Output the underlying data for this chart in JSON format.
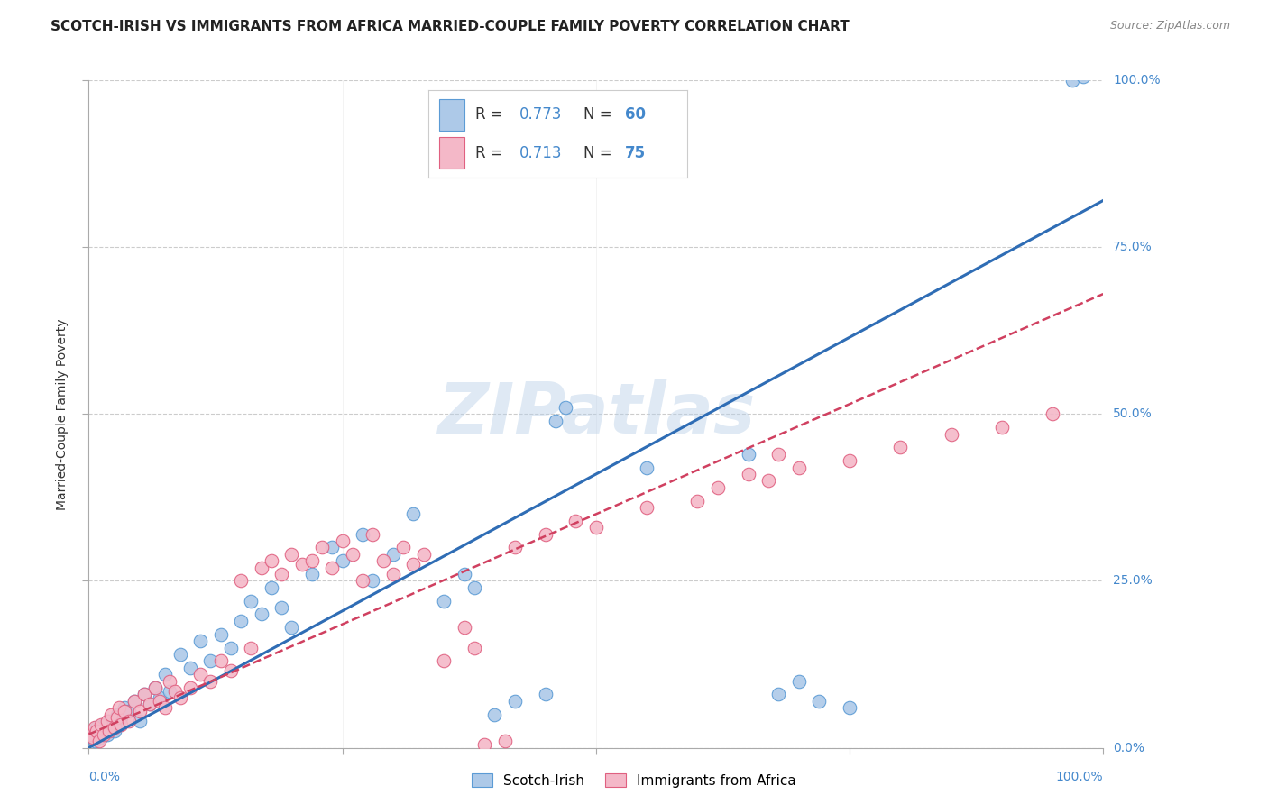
{
  "title": "SCOTCH-IRISH VS IMMIGRANTS FROM AFRICA MARRIED-COUPLE FAMILY POVERTY CORRELATION CHART",
  "source": "Source: ZipAtlas.com",
  "ylabel": "Married-Couple Family Poverty",
  "ytick_values": [
    0,
    25,
    50,
    75,
    100
  ],
  "ytick_labels": [
    "0.0%",
    "25.0%",
    "50.0%",
    "75.0%",
    "100.0%"
  ],
  "xtick_values": [
    0,
    25,
    50,
    75,
    100
  ],
  "xlim": [
    0,
    100
  ],
  "ylim": [
    0,
    100
  ],
  "watermark": "ZIPatlas",
  "series": [
    {
      "name": "Scotch-Irish",
      "color": "#adc9e8",
      "edge_color": "#5b9bd5",
      "line_color": "#2f6db5",
      "line_style": "solid",
      "R": 0.773,
      "N": 60,
      "points": [
        [
          0.2,
          1.5
        ],
        [
          0.4,
          2.0
        ],
        [
          0.6,
          1.0
        ],
        [
          0.8,
          3.0
        ],
        [
          1.0,
          2.5
        ],
        [
          1.2,
          1.5
        ],
        [
          1.5,
          3.5
        ],
        [
          1.8,
          2.0
        ],
        [
          2.0,
          4.0
        ],
        [
          2.2,
          3.0
        ],
        [
          2.5,
          2.5
        ],
        [
          2.8,
          5.0
        ],
        [
          3.0,
          3.5
        ],
        [
          3.2,
          4.5
        ],
        [
          3.5,
          6.0
        ],
        [
          4.0,
          5.5
        ],
        [
          4.5,
          7.0
        ],
        [
          5.0,
          4.0
        ],
        [
          5.5,
          8.0
        ],
        [
          6.0,
          6.5
        ],
        [
          6.5,
          9.0
        ],
        [
          7.0,
          7.5
        ],
        [
          7.5,
          11.0
        ],
        [
          8.0,
          8.5
        ],
        [
          9.0,
          14.0
        ],
        [
          10.0,
          12.0
        ],
        [
          11.0,
          16.0
        ],
        [
          12.0,
          13.0
        ],
        [
          13.0,
          17.0
        ],
        [
          14.0,
          15.0
        ],
        [
          15.0,
          19.0
        ],
        [
          16.0,
          22.0
        ],
        [
          17.0,
          20.0
        ],
        [
          18.0,
          24.0
        ],
        [
          19.0,
          21.0
        ],
        [
          20.0,
          18.0
        ],
        [
          22.0,
          26.0
        ],
        [
          24.0,
          30.0
        ],
        [
          25.0,
          28.0
        ],
        [
          27.0,
          32.0
        ],
        [
          28.0,
          25.0
        ],
        [
          30.0,
          29.0
        ],
        [
          32.0,
          35.0
        ],
        [
          35.0,
          22.0
        ],
        [
          37.0,
          26.0
        ],
        [
          38.0,
          24.0
        ],
        [
          40.0,
          5.0
        ],
        [
          42.0,
          7.0
        ],
        [
          45.0,
          8.0
        ],
        [
          46.0,
          49.0
        ],
        [
          47.0,
          51.0
        ],
        [
          55.0,
          42.0
        ],
        [
          65.0,
          44.0
        ],
        [
          68.0,
          8.0
        ],
        [
          70.0,
          10.0
        ],
        [
          72.0,
          7.0
        ],
        [
          75.0,
          6.0
        ],
        [
          97.0,
          100.0
        ],
        [
          98.0,
          100.5
        ]
      ]
    },
    {
      "name": "Immigrants from Africa",
      "color": "#f4b8c8",
      "edge_color": "#e06080",
      "line_color": "#d04060",
      "line_style": "dashed",
      "R": 0.713,
      "N": 75,
      "points": [
        [
          0.2,
          2.0
        ],
        [
          0.4,
          1.5
        ],
        [
          0.6,
          3.0
        ],
        [
          0.8,
          2.5
        ],
        [
          1.0,
          1.0
        ],
        [
          1.2,
          3.5
        ],
        [
          1.5,
          2.0
        ],
        [
          1.8,
          4.0
        ],
        [
          2.0,
          2.5
        ],
        [
          2.2,
          5.0
        ],
        [
          2.5,
          3.0
        ],
        [
          2.8,
          4.5
        ],
        [
          3.0,
          6.0
        ],
        [
          3.2,
          3.5
        ],
        [
          3.5,
          5.5
        ],
        [
          4.0,
          4.0
        ],
        [
          4.5,
          7.0
        ],
        [
          5.0,
          5.5
        ],
        [
          5.5,
          8.0
        ],
        [
          6.0,
          6.5
        ],
        [
          6.5,
          9.0
        ],
        [
          7.0,
          7.0
        ],
        [
          7.5,
          6.0
        ],
        [
          8.0,
          10.0
        ],
        [
          8.5,
          8.5
        ],
        [
          9.0,
          7.5
        ],
        [
          10.0,
          9.0
        ],
        [
          11.0,
          11.0
        ],
        [
          12.0,
          10.0
        ],
        [
          13.0,
          13.0
        ],
        [
          14.0,
          11.5
        ],
        [
          15.0,
          25.0
        ],
        [
          16.0,
          15.0
        ],
        [
          17.0,
          27.0
        ],
        [
          18.0,
          28.0
        ],
        [
          19.0,
          26.0
        ],
        [
          20.0,
          29.0
        ],
        [
          21.0,
          27.5
        ],
        [
          22.0,
          28.0
        ],
        [
          23.0,
          30.0
        ],
        [
          24.0,
          27.0
        ],
        [
          25.0,
          31.0
        ],
        [
          26.0,
          29.0
        ],
        [
          27.0,
          25.0
        ],
        [
          28.0,
          32.0
        ],
        [
          29.0,
          28.0
        ],
        [
          30.0,
          26.0
        ],
        [
          31.0,
          30.0
        ],
        [
          32.0,
          27.5
        ],
        [
          33.0,
          29.0
        ],
        [
          35.0,
          13.0
        ],
        [
          37.0,
          18.0
        ],
        [
          38.0,
          15.0
        ],
        [
          39.0,
          0.5
        ],
        [
          41.0,
          1.0
        ],
        [
          42.0,
          30.0
        ],
        [
          45.0,
          32.0
        ],
        [
          48.0,
          34.0
        ],
        [
          50.0,
          33.0
        ],
        [
          55.0,
          36.0
        ],
        [
          60.0,
          37.0
        ],
        [
          62.0,
          39.0
        ],
        [
          65.0,
          41.0
        ],
        [
          67.0,
          40.0
        ],
        [
          68.0,
          44.0
        ],
        [
          70.0,
          42.0
        ],
        [
          75.0,
          43.0
        ],
        [
          80.0,
          45.0
        ],
        [
          85.0,
          47.0
        ],
        [
          90.0,
          48.0
        ],
        [
          95.0,
          50.0
        ]
      ]
    }
  ]
}
